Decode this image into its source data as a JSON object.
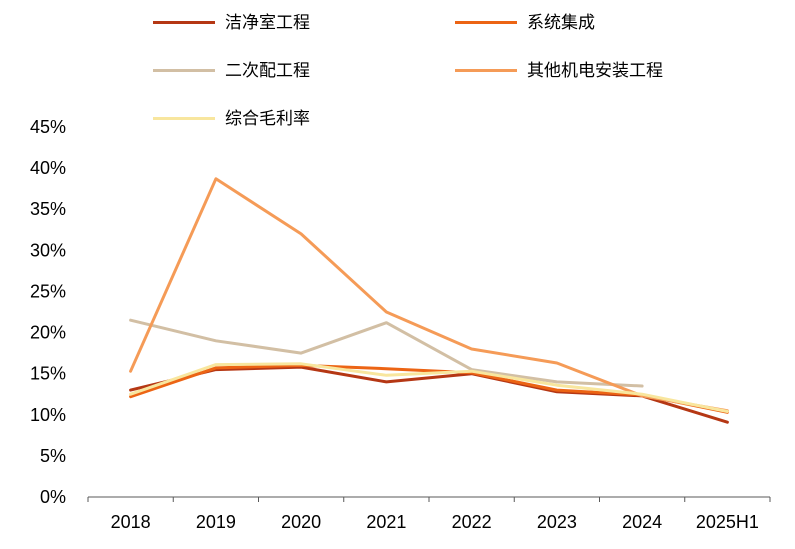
{
  "chart_data": {
    "type": "line",
    "title": "",
    "xlabel": "",
    "ylabel": "",
    "categories": [
      "2018",
      "2019",
      "2020",
      "2021",
      "2022",
      "2023",
      "2024",
      "2025H1"
    ],
    "series": [
      {
        "name": "洁净室工程",
        "color": "#b53714",
        "values": [
          13.0,
          15.5,
          15.8,
          14.0,
          15.0,
          12.8,
          12.3,
          9.1
        ]
      },
      {
        "name": "系统集成",
        "color": "#ec6414",
        "values": [
          12.2,
          15.7,
          16.0,
          15.6,
          15.1,
          13.0,
          12.4,
          10.3
        ]
      },
      {
        "name": "二次配工程",
        "color": "#d2bfa4",
        "values": [
          21.5,
          19.0,
          17.5,
          21.2,
          15.5,
          14.0,
          13.5,
          null
        ]
      },
      {
        "name": "其他机电安装工程",
        "color": "#f59b57",
        "values": [
          15.3,
          38.7,
          32.0,
          22.5,
          18.0,
          16.3,
          12.3,
          10.5
        ]
      },
      {
        "name": "综合毛利率",
        "color": "#f8e69e",
        "values": [
          12.5,
          16.1,
          16.2,
          14.8,
          15.3,
          13.6,
          12.5,
          10.4
        ]
      }
    ],
    "ylim": [
      0,
      45
    ],
    "ytick_step": 5,
    "ytick_format": "percent",
    "grid": false,
    "legend_position": "top",
    "axis_color": "#595959",
    "text_color": "#000000"
  }
}
